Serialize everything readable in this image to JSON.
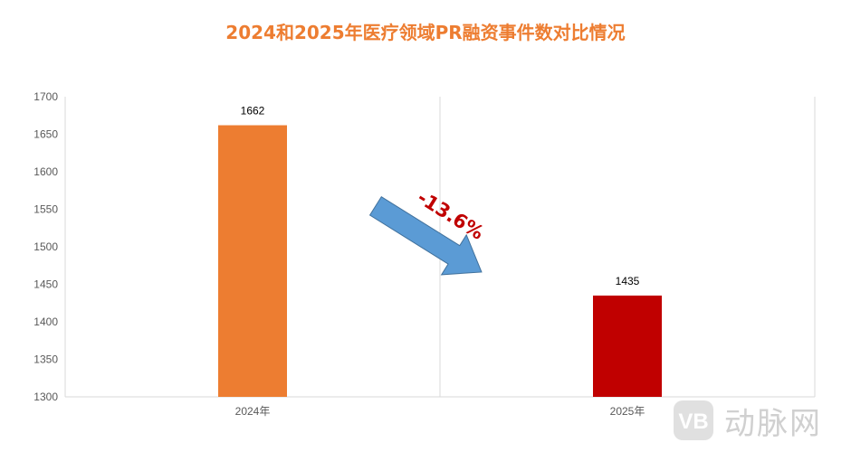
{
  "colors": {
    "title": "#ed7d31",
    "bar_2024": "#ed7d31",
    "bar_2025": "#c00000",
    "arrow": "#5b9bd5",
    "delta": "#c00000",
    "grid": "#d9d9d9"
  },
  "chart_data": {
    "type": "bar",
    "title": "2024和2025年医疗领域PR融资事件数对比情况",
    "xlabel": "",
    "ylabel": "",
    "categories": [
      "2024年",
      "2025年"
    ],
    "values": [
      1662,
      1435
    ],
    "data_labels": [
      "1662",
      "1435"
    ],
    "ylim": [
      1300,
      1700
    ],
    "yticks": [
      1300,
      1350,
      1400,
      1450,
      1500,
      1550,
      1600,
      1650,
      1700
    ],
    "grid": "vertical category separators",
    "legend": "none",
    "annotation": {
      "text": "-13.6%",
      "icon": "down-right-arrow-icon"
    }
  },
  "watermark": {
    "text": "动脉网",
    "icon": "vb-logo-icon"
  }
}
